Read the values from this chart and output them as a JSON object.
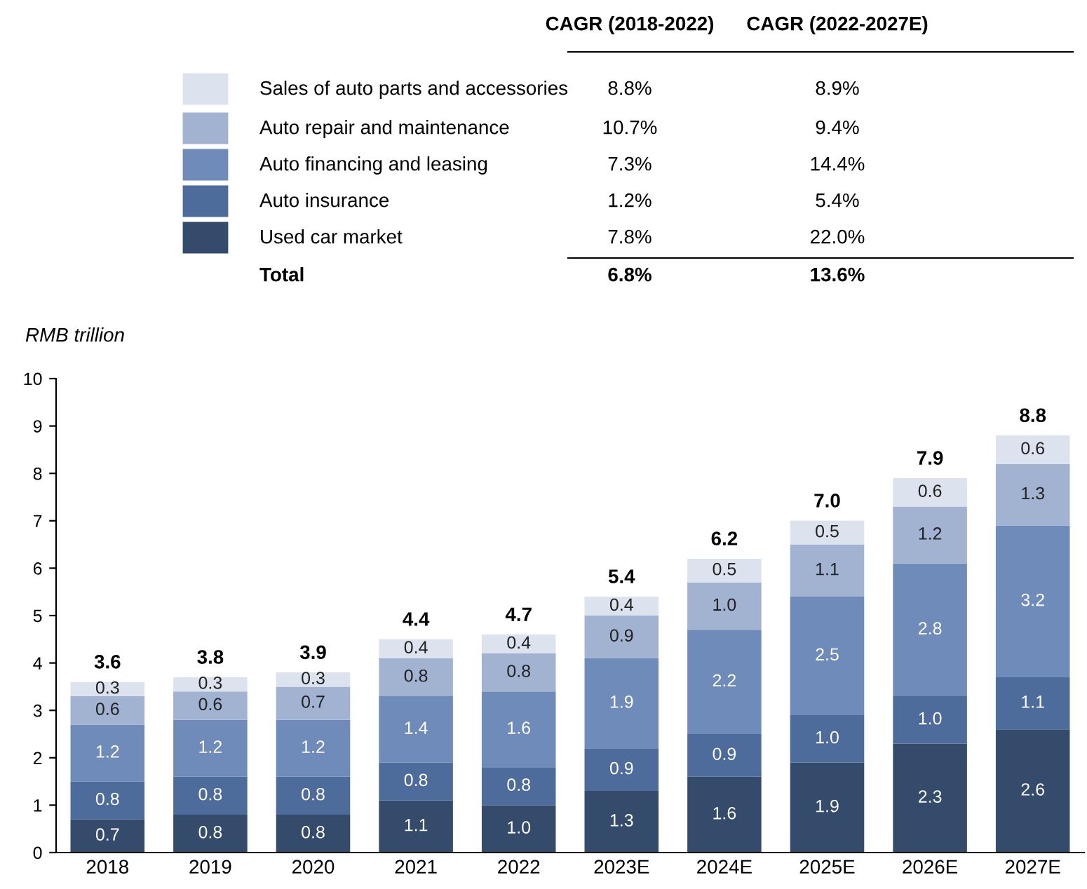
{
  "chart_data": {
    "type": "bar",
    "stacked": true,
    "ylabel": "RMB trillion",
    "categories": [
      "2018",
      "2019",
      "2020",
      "2021",
      "2022",
      "2023E",
      "2024E",
      "2025E",
      "2026E",
      "2027E"
    ],
    "series": [
      {
        "name": "Used car market",
        "color": "#344b6c",
        "values": [
          0.7,
          0.8,
          0.8,
          1.1,
          1.0,
          1.3,
          1.6,
          1.9,
          2.3,
          2.6
        ],
        "value_labels": [
          "0.7",
          "0.8",
          "0.8",
          "1.1",
          "1.0",
          "1.3",
          "1.6",
          "1.9",
          "2.3",
          "2.6"
        ]
      },
      {
        "name": "Auto insurance",
        "color": "#4d6b9b",
        "values": [
          0.8,
          0.8,
          0.8,
          0.8,
          0.8,
          0.9,
          0.9,
          1.0,
          1.0,
          1.1
        ],
        "value_labels": [
          "0.8",
          "0.8",
          "0.8",
          "0.8",
          "0.8",
          "0.9",
          "0.9",
          "1.0",
          "1.0",
          "1.1"
        ]
      },
      {
        "name": "Auto financing and leasing",
        "color": "#6f8bb9",
        "values": [
          1.2,
          1.2,
          1.2,
          1.4,
          1.6,
          1.9,
          2.2,
          2.5,
          2.8,
          3.2
        ],
        "value_labels": [
          "1.2",
          "1.2",
          "1.2",
          "1.4",
          "1.6",
          "1.9",
          "2.2",
          "2.5",
          "2.8",
          "3.2"
        ]
      },
      {
        "name": "Auto repair and maintenance",
        "color": "#a2b3d1",
        "values": [
          0.6,
          0.6,
          0.7,
          0.8,
          0.8,
          0.9,
          1.0,
          1.1,
          1.2,
          1.3
        ],
        "value_labels": [
          "0.6",
          "0.6",
          "0.7",
          "0.8",
          "0.8",
          "0.9",
          "1.0",
          "1.1",
          "1.2",
          "1.3"
        ]
      },
      {
        "name": "Sales of auto parts and accessories",
        "color": "#dde3ee",
        "values": [
          0.3,
          0.3,
          0.3,
          0.4,
          0.4,
          0.4,
          0.5,
          0.5,
          0.6,
          0.6
        ],
        "value_labels": [
          "0.3",
          "0.3",
          "0.3",
          "0.4",
          "0.4",
          "0.4",
          "0.5",
          "0.5",
          "0.6",
          "0.6"
        ]
      }
    ],
    "totals": [
      "3.6",
      "3.8",
      "3.9",
      "4.4",
      "4.7",
      "5.4",
      "6.2",
      "7.0",
      "7.9",
      "8.8"
    ],
    "ylim": [
      0,
      10
    ],
    "yticks": [
      0,
      1,
      2,
      3,
      4,
      5,
      6,
      7,
      8,
      9,
      10
    ],
    "grid": false,
    "legend": "top",
    "annotations": [
      "CAGR (2018-2022)",
      "CAGR (2022-2027E)",
      "8.8%",
      "8.9%",
      "10.7%",
      "9.4%",
      "7.3%",
      "14.4%",
      "1.2%",
      "5.4%",
      "7.8%",
      "22.0%",
      "Total",
      "6.8%",
      "13.6%"
    ]
  }
}
